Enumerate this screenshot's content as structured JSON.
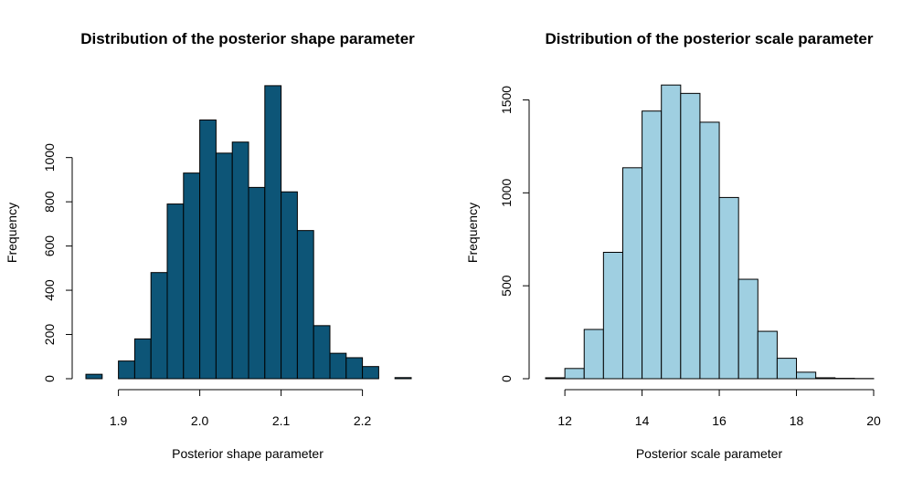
{
  "chart_data": [
    {
      "type": "bar",
      "title": "Distribution of the posterior shape parameter",
      "xlabel": "Posterior shape parameter",
      "ylabel": "Frequency",
      "bar_color": "#0d5577",
      "bin_edges": [
        1.86,
        1.88,
        1.9,
        1.92,
        1.94,
        1.96,
        1.98,
        2.0,
        2.02,
        2.04,
        2.06,
        2.08,
        2.1,
        2.12,
        2.14,
        2.16,
        2.18,
        2.2,
        2.22,
        2.24,
        2.26
      ],
      "values": [
        20,
        0,
        80,
        180,
        480,
        790,
        930,
        1170,
        1020,
        1070,
        865,
        1325,
        845,
        670,
        240,
        115,
        95,
        55,
        0,
        5
      ],
      "xlim": [
        1.86,
        2.26
      ],
      "ylim": [
        0,
        1370
      ],
      "xticks": [
        "1.9",
        "2.0",
        "2.1",
        "2.2"
      ],
      "xtick_values": [
        1.9,
        2.0,
        2.1,
        2.2
      ],
      "yticks": [
        "0",
        "200",
        "400",
        "600",
        "800",
        "1000"
      ],
      "ytick_values": [
        0,
        200,
        400,
        600,
        800,
        1000
      ],
      "grid": false
    },
    {
      "type": "bar",
      "title": "Distribution of the posterior scale parameter",
      "xlabel": "Posterior scale parameter",
      "ylabel": "Frequency",
      "bar_color": "#9fcfe1",
      "bin_edges": [
        11.5,
        12.0,
        12.5,
        13.0,
        13.5,
        14.0,
        14.5,
        15.0,
        15.5,
        16.0,
        16.5,
        17.0,
        17.5,
        18.0,
        18.5,
        19.0,
        19.5,
        20.0
      ],
      "values": [
        5,
        55,
        265,
        680,
        1135,
        1440,
        1580,
        1535,
        1380,
        975,
        535,
        255,
        110,
        35,
        5,
        2,
        1
      ],
      "xlim": [
        11.5,
        20.0
      ],
      "ylim": [
        0,
        1630
      ],
      "xticks": [
        "12",
        "14",
        "16",
        "18",
        "20"
      ],
      "xtick_values": [
        12,
        14,
        16,
        18,
        20
      ],
      "yticks": [
        "0",
        "500",
        "1000",
        "1500"
      ],
      "ytick_values": [
        0,
        500,
        1000,
        1500
      ],
      "grid": false
    }
  ]
}
